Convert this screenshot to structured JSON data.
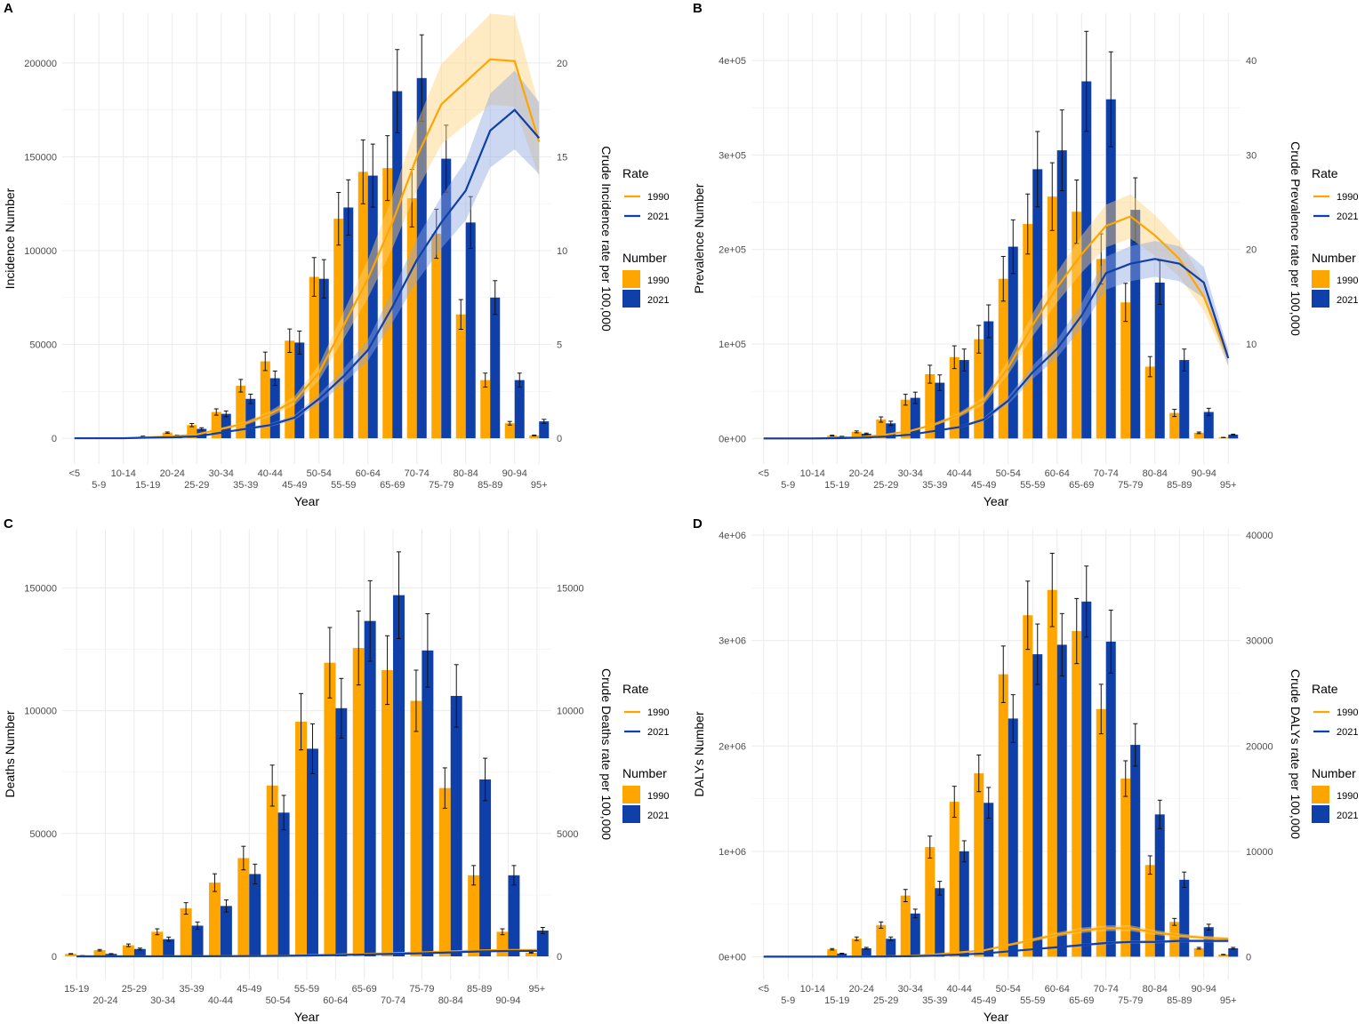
{
  "colors": {
    "c1990": "#FFA500",
    "c2021": "#0F3FA8",
    "band1990": "#FFD27A",
    "band2021": "#8FA6E0",
    "grid": "#EBEBEB",
    "text": "#4D4D4D"
  },
  "legend": {
    "rate_title": "Rate",
    "number_title": "Number",
    "y1990": "1990",
    "y2021": "2021"
  },
  "chart_data": [
    {
      "panel": "A",
      "type": "bar+line",
      "xlabel": "Year",
      "ylabel": "Incidence Number",
      "ylabel_right": "Crude Incidence rate per 100,000",
      "categories": [
        "<5",
        "5-9",
        "10-14",
        "15-19",
        "20-24",
        "25-29",
        "30-34",
        "35-39",
        "40-44",
        "45-49",
        "50-54",
        "55-59",
        "60-64",
        "65-69",
        "70-74",
        "75-79",
        "80-84",
        "85-89",
        "90-94",
        "95+"
      ],
      "cat_labels": [
        "<5",
        "5-9",
        "10-14",
        "15-19",
        "20-24",
        "25-29",
        "30-34",
        "35-39",
        "40-44",
        "45-49",
        "50-54",
        "55-59",
        "60-64",
        "65-69",
        "70-74",
        "75-79",
        "80-84",
        "85-89",
        "90-94",
        "95+"
      ],
      "yticks": [
        0,
        50000,
        100000,
        150000,
        200000
      ],
      "ytick_labels": [
        "0",
        "50000",
        "100000",
        "150000",
        "200000"
      ],
      "yticks_right": [
        0,
        5,
        10,
        15,
        20
      ],
      "ytick_right_labels": [
        "0",
        "5",
        "10",
        "15",
        "20"
      ],
      "ylim": [
        -13700,
        226500
      ],
      "rate_scale": 10000,
      "error_fraction": 0.12,
      "band_fraction": 0.12,
      "series": [
        {
          "name": "Number 1990",
          "values": [
            0,
            0,
            0,
            1000,
            3000,
            7000,
            14000,
            28000,
            41000,
            52000,
            86000,
            117000,
            142000,
            144000,
            128000,
            109000,
            66000,
            31000,
            8000,
            1500
          ]
        },
        {
          "name": "Number 2021",
          "values": [
            0,
            0,
            0,
            500,
            1500,
            5000,
            13000,
            21000,
            32000,
            51000,
            85000,
            123000,
            140000,
            185000,
            192000,
            149000,
            115000,
            75000,
            31000,
            9000
          ]
        },
        {
          "name": "Rate 1990",
          "values": [
            0,
            0,
            0,
            0.05,
            0.1,
            0.2,
            0.5,
            0.8,
            1.3,
            2.0,
            3.5,
            6.0,
            8.5,
            11.5,
            15.0,
            17.8,
            19.0,
            20.2,
            20.1,
            15.8
          ]
        },
        {
          "name": "Rate 2021",
          "values": [
            0,
            0,
            0,
            0.03,
            0.05,
            0.1,
            0.3,
            0.5,
            0.7,
            1.1,
            2.1,
            3.3,
            4.7,
            7.0,
            9.5,
            11.5,
            13.2,
            16.4,
            17.5,
            16.0
          ]
        }
      ]
    },
    {
      "panel": "B",
      "type": "bar+line",
      "xlabel": "Year",
      "ylabel": "Prevalence Number",
      "ylabel_right": "Crude Prevalence rate per 100,000",
      "categories": [
        "<5",
        "5-9",
        "10-14",
        "15-19",
        "20-24",
        "25-29",
        "30-34",
        "35-39",
        "40-44",
        "45-49",
        "50-54",
        "55-59",
        "60-64",
        "65-69",
        "70-74",
        "75-79",
        "80-84",
        "85-89",
        "90-94",
        "95+"
      ],
      "cat_labels": [
        "<5",
        "5-9",
        "10-14",
        "15-19",
        "20-24",
        "25-29",
        "30-34",
        "35-39",
        "40-44",
        "45-49",
        "50-54",
        "55-59",
        "60-64",
        "65-69",
        "70-74",
        "75-79",
        "80-84",
        "85-89",
        "90-94",
        "95+"
      ],
      "yticks": [
        0,
        100000,
        200000,
        300000,
        400000
      ],
      "ytick_labels": [
        "0e+00",
        "1e+05",
        "2e+05",
        "3e+05",
        "4e+05"
      ],
      "yticks_right": [
        10,
        20,
        30,
        40
      ],
      "ytick_right_labels": [
        "10",
        "20",
        "30",
        "40"
      ],
      "ylim": [
        -27000,
        450000
      ],
      "rate_scale": 10000,
      "error_fraction": 0.14,
      "band_fraction": 0.1,
      "series": [
        {
          "name": "Number 1990",
          "values": [
            0,
            0,
            0,
            3000,
            7000,
            20000,
            41000,
            68000,
            86000,
            105000,
            169000,
            227000,
            256000,
            240000,
            190000,
            144000,
            76000,
            27000,
            6000,
            1000
          ]
        },
        {
          "name": "Number 2021",
          "values": [
            0,
            0,
            0,
            2000,
            5000,
            16000,
            43000,
            59000,
            83000,
            124000,
            203000,
            285000,
            305000,
            378000,
            359000,
            242000,
            165000,
            83000,
            28000,
            4000
          ]
        },
        {
          "name": "Rate 1990",
          "values": [
            0,
            0,
            0,
            0.05,
            0.15,
            0.4,
            0.8,
            1.5,
            2.5,
            4.0,
            7.5,
            12.0,
            16.0,
            19.5,
            22.5,
            23.5,
            21.5,
            19.0,
            15.0,
            8.5
          ]
        },
        {
          "name": "Rate 2021",
          "values": [
            0,
            0,
            0,
            0.03,
            0.08,
            0.2,
            0.4,
            0.8,
            1.2,
            2.0,
            4.0,
            7.0,
            9.5,
            13.0,
            17.5,
            18.5,
            19.0,
            18.5,
            16.5,
            8.5
          ]
        }
      ]
    },
    {
      "panel": "C",
      "type": "bar+line",
      "xlabel": "Year",
      "ylabel": "Deaths Number",
      "ylabel_right": "Crude Deaths rate per 100,000",
      "categories": [
        "15-19",
        "20-24",
        "25-29",
        "30-34",
        "35-39",
        "40-44",
        "45-49",
        "50-54",
        "55-59",
        "60-64",
        "65-69",
        "70-74",
        "75-79",
        "80-84",
        "85-89",
        "90-94",
        "95+"
      ],
      "cat_labels": [
        "15-19",
        "20-24",
        "25-29",
        "30-34",
        "35-39",
        "40-44",
        "45-49",
        "50-54",
        "55-59",
        "60-64",
        "65-69",
        "70-74",
        "75-79",
        "80-84",
        "85-89",
        "90-94",
        "95+"
      ],
      "yticks": [
        0,
        50000,
        100000,
        150000
      ],
      "ytick_labels": [
        "0",
        "50000",
        "100000",
        "150000"
      ],
      "yticks_right": [
        0,
        5000,
        10000,
        15000
      ],
      "ytick_right_labels": [
        "0",
        "5000",
        "10000",
        "15000"
      ],
      "ylim": [
        -9400,
        174000
      ],
      "rate_scale": 10,
      "error_fraction": 0.12,
      "band_fraction": 0.12,
      "series": [
        {
          "name": "Number 1990",
          "values": [
            1000,
            2500,
            4500,
            10000,
            19500,
            30000,
            40000,
            69500,
            95500,
            119500,
            125500,
            116500,
            104000,
            68500,
            33000,
            10000,
            1500
          ]
        },
        {
          "name": "Number 2021",
          "values": [
            300,
            1000,
            3000,
            7000,
            12500,
            20500,
            33500,
            58500,
            84500,
            101000,
            136500,
            147000,
            124500,
            106000,
            72000,
            33000,
            10500
          ]
        },
        {
          "name": "Rate 1990",
          "values": [
            0,
            1,
            2,
            4,
            6,
            10,
            15,
            25,
            45,
            70,
            100,
            130,
            160,
            200,
            240,
            260,
            260
          ]
        },
        {
          "name": "Rate 2021",
          "values": [
            0,
            0.5,
            1,
            2,
            4,
            7,
            11,
            18,
            32,
            50,
            75,
            100,
            125,
            160,
            200,
            220,
            220
          ]
        }
      ]
    },
    {
      "panel": "D",
      "type": "bar+line",
      "xlabel": "Year",
      "ylabel": "DALYs Number",
      "ylabel_right": "Crude DALYs rate per 100,000",
      "categories": [
        "<5",
        "5-9",
        "10-14",
        "15-19",
        "20-24",
        "25-29",
        "30-34",
        "35-39",
        "40-44",
        "45-49",
        "50-54",
        "55-59",
        "60-64",
        "65-69",
        "70-74",
        "75-79",
        "80-84",
        "85-89",
        "90-94",
        "95+"
      ],
      "cat_labels": [
        "<5",
        "5-9",
        "10-14",
        "15-19",
        "20-24",
        "25-29",
        "30-34",
        "35-39",
        "40-44",
        "45-49",
        "50-54",
        "55-59",
        "60-64",
        "65-69",
        "70-74",
        "75-79",
        "80-84",
        "85-89",
        "90-94",
        "95+"
      ],
      "yticks": [
        0,
        1000000,
        2000000,
        3000000,
        4000000
      ],
      "ytick_labels": [
        "0e+00",
        "1e+06",
        "2e+06",
        "3e+06",
        "4e+06"
      ],
      "yticks_right": [
        0,
        10000,
        20000,
        30000,
        40000
      ],
      "ytick_right_labels": [
        "0",
        "10000",
        "20000",
        "30000",
        "40000"
      ],
      "ylim": [
        -216000,
        4060000
      ],
      "rate_scale": 100,
      "error_fraction": 0.1,
      "band_fraction": 0.1,
      "series": [
        {
          "name": "Number 1990",
          "values": [
            0,
            0,
            0,
            70000,
            170000,
            300000,
            580000,
            1040000,
            1470000,
            1740000,
            2680000,
            3240000,
            3480000,
            3090000,
            2350000,
            1690000,
            870000,
            330000,
            80000,
            20000
          ]
        },
        {
          "name": "Number 2021",
          "values": [
            0,
            0,
            0,
            30000,
            80000,
            170000,
            410000,
            650000,
            1000000,
            1460000,
            2260000,
            2870000,
            2960000,
            3370000,
            2990000,
            2010000,
            1350000,
            730000,
            280000,
            80000
          ]
        },
        {
          "name": "Rate 1990",
          "values": [
            0,
            0,
            0,
            5,
            15,
            40,
            90,
            200,
            400,
            600,
            1100,
            1600,
            2100,
            2500,
            2700,
            2700,
            2300,
            2000,
            1800,
            1700
          ]
        },
        {
          "name": "Rate 2021",
          "values": [
            0,
            0,
            0,
            3,
            8,
            20,
            45,
            100,
            200,
            300,
            500,
            700,
            900,
            1100,
            1300,
            1400,
            1400,
            1500,
            1500,
            1500
          ]
        }
      ]
    }
  ]
}
